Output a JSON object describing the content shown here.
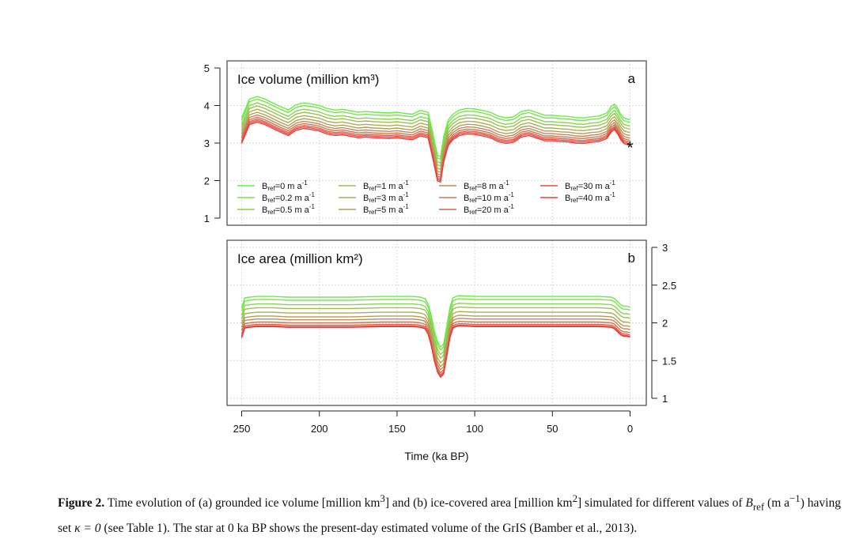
{
  "chart_data": [
    {
      "type": "line",
      "panel_letter": "a",
      "title": "Ice volume (million km³)",
      "xlabel": "Time (ka BP)",
      "ylabel": "",
      "xlim": [
        250,
        0
      ],
      "ylim": [
        1,
        5
      ],
      "yticks": [
        "1",
        "2",
        "3",
        "4",
        "5"
      ],
      "xticks": [
        "250",
        "200",
        "150",
        "100",
        "50",
        "0"
      ],
      "y_axis_side": "left",
      "grid": true,
      "legend_placement": "bottom",
      "marker": {
        "symbol": "*",
        "x": 0,
        "y": 2.93
      },
      "x": [
        250,
        245,
        240,
        235,
        230,
        225,
        220,
        215,
        210,
        205,
        200,
        195,
        190,
        185,
        180,
        175,
        170,
        165,
        160,
        155,
        150,
        145,
        140,
        135,
        130,
        127,
        124,
        122,
        120,
        117,
        114,
        110,
        105,
        100,
        95,
        90,
        85,
        80,
        75,
        70,
        65,
        60,
        55,
        50,
        45,
        40,
        35,
        30,
        25,
        20,
        15,
        12,
        10,
        8,
        6,
        4,
        2,
        0
      ],
      "series_base_values": [
        3.05,
        3.55,
        3.62,
        3.55,
        3.45,
        3.35,
        3.26,
        3.4,
        3.45,
        3.42,
        3.38,
        3.3,
        3.26,
        3.28,
        3.24,
        3.2,
        3.22,
        3.2,
        3.19,
        3.18,
        3.2,
        3.17,
        3.15,
        3.25,
        3.2,
        2.65,
        2.05,
        2.02,
        2.55,
        3.0,
        3.15,
        3.26,
        3.3,
        3.29,
        3.25,
        3.2,
        3.1,
        3.05,
        3.08,
        3.22,
        3.26,
        3.19,
        3.12,
        3.12,
        3.1,
        3.09,
        3.06,
        3.05,
        3.08,
        3.1,
        3.18,
        3.36,
        3.42,
        3.3,
        3.15,
        3.05,
        3.02,
        3.0
      ],
      "series": [
        {
          "name": "Bref=0 m a-1",
          "color": "#66ee44",
          "offset": 0.62
        },
        {
          "name": "Bref=0.2 m a-1",
          "color": "#76e44a",
          "offset": 0.55
        },
        {
          "name": "Bref=0.5 m a-1",
          "color": "#86d34d",
          "offset": 0.45
        },
        {
          "name": "Bref=1 m a-1",
          "color": "#98c050",
          "offset": 0.37
        },
        {
          "name": "Bref=3 m a-1",
          "color": "#a8ae55",
          "offset": 0.28
        },
        {
          "name": "Bref=5 m a-1",
          "color": "#b69c58",
          "offset": 0.2
        },
        {
          "name": "Bref=8 m a-1",
          "color": "#c2885a",
          "offset": 0.13
        },
        {
          "name": "Bref=10 m a-1",
          "color": "#cc7656",
          "offset": 0.07
        },
        {
          "name": "Bref=20 m a-1",
          "color": "#d9634e",
          "offset": 0.02
        },
        {
          "name": "Bref=30 m a-1",
          "color": "#e64e44",
          "offset": -0.02
        },
        {
          "name": "Bref=40 m a-1",
          "color": "#ee3b3a",
          "offset": -0.06
        }
      ]
    },
    {
      "type": "line",
      "panel_letter": "b",
      "title": "Ice area (million km²)",
      "xlabel": "Time (ka BP)",
      "ylabel": "",
      "xlim": [
        250,
        0
      ],
      "ylim": [
        1,
        3
      ],
      "yticks": [
        "1",
        "1.5",
        "2",
        "2.5",
        "3"
      ],
      "xticks": [
        "250",
        "200",
        "150",
        "100",
        "50",
        "0"
      ],
      "y_axis_side": "right",
      "grid": true,
      "x": [
        250,
        248,
        245,
        240,
        230,
        220,
        200,
        180,
        160,
        150,
        140,
        135,
        132,
        130,
        128,
        126,
        124,
        122,
        120,
        118,
        116,
        114,
        112,
        110,
        100,
        80,
        60,
        40,
        20,
        12,
        10,
        8,
        6,
        4,
        2,
        0
      ],
      "series_base_values": [
        1.8,
        1.93,
        1.94,
        1.95,
        1.95,
        1.94,
        1.94,
        1.94,
        1.95,
        1.95,
        1.95,
        1.94,
        1.92,
        1.85,
        1.7,
        1.5,
        1.35,
        1.28,
        1.32,
        1.55,
        1.8,
        1.93,
        1.95,
        1.96,
        1.95,
        1.95,
        1.95,
        1.95,
        1.95,
        1.94,
        1.92,
        1.88,
        1.84,
        1.82,
        1.82,
        1.81
      ],
      "series": [
        {
          "name": "Bref=0 m a-1",
          "color": "#66ee44",
          "offset": 0.4
        },
        {
          "name": "Bref=0.2 m a-1",
          "color": "#76e44a",
          "offset": 0.36
        },
        {
          "name": "Bref=0.5 m a-1",
          "color": "#86d34d",
          "offset": 0.3
        },
        {
          "name": "Bref=1 m a-1",
          "color": "#98c050",
          "offset": 0.25
        },
        {
          "name": "Bref=3 m a-1",
          "color": "#a8ae55",
          "offset": 0.19
        },
        {
          "name": "Bref=5 m a-1",
          "color": "#b69c58",
          "offset": 0.14
        },
        {
          "name": "Bref=8 m a-1",
          "color": "#c2885a",
          "offset": 0.1
        },
        {
          "name": "Bref=10 m a-1",
          "color": "#cc7656",
          "offset": 0.06
        },
        {
          "name": "Bref=20 m a-1",
          "color": "#d9634e",
          "offset": 0.03
        },
        {
          "name": "Bref=30 m a-1",
          "color": "#e64e44",
          "offset": 0.01
        },
        {
          "name": "Bref=40 m a-1",
          "color": "#ee3b3a",
          "offset": 0.0
        }
      ]
    }
  ],
  "legend": {
    "columns": [
      [
        {
          "base": "B",
          "sub": "ref",
          "rest": "=0 m a",
          "sup": "-1",
          "color": "#66ee44"
        },
        {
          "base": "B",
          "sub": "ref",
          "rest": "=0.2 m a",
          "sup": "-1",
          "color": "#76e44a"
        },
        {
          "base": "B",
          "sub": "ref",
          "rest": "=0.5 m a",
          "sup": "-1",
          "color": "#86d34d"
        }
      ],
      [
        {
          "base": "B",
          "sub": "ref",
          "rest": "=1 m a",
          "sup": "-1",
          "color": "#98c050"
        },
        {
          "base": "B",
          "sub": "ref",
          "rest": "=3 m a",
          "sup": "-1",
          "color": "#a8ae55"
        },
        {
          "base": "B",
          "sub": "ref",
          "rest": "=5 m a",
          "sup": "-1",
          "color": "#b69c58"
        }
      ],
      [
        {
          "base": "B",
          "sub": "ref",
          "rest": "=8 m a",
          "sup": "-1",
          "color": "#c2885a"
        },
        {
          "base": "B",
          "sub": "ref",
          "rest": "=10 m a",
          "sup": "-1",
          "color": "#cc7656"
        },
        {
          "base": "B",
          "sub": "ref",
          "rest": "=20 m a",
          "sup": "-1",
          "color": "#d9634e"
        }
      ],
      [
        {
          "base": "B",
          "sub": "ref",
          "rest": "=30 m a",
          "sup": "-1",
          "color": "#e64e44"
        },
        {
          "base": "B",
          "sub": "ref",
          "rest": "=40 m a",
          "sup": "-1",
          "color": "#ee3b3a"
        }
      ]
    ]
  },
  "caption": {
    "label": "Figure 2.",
    "text_1": " Time evolution of (a) grounded ice volume [million km",
    "sup_1": "3",
    "text_2": "] and (b) ice-covered area [million km",
    "sup_2": "2",
    "text_3": "] simulated for different values of ",
    "var": "B",
    "var_sub": "ref",
    "text_4": " (m a",
    "sup_3": "−1",
    "text_5": ") having set ",
    "kappa": "κ = 0",
    "text_6": " (see Table 1). The star at 0 ka BP shows the present-day estimated volume of the GrIS (Bamber et al., 2013)."
  }
}
